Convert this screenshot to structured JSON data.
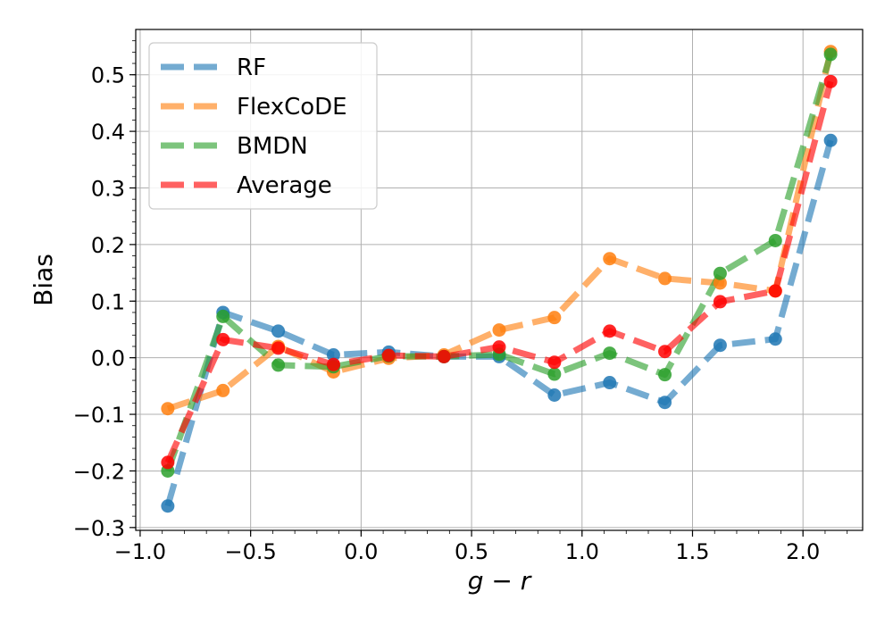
{
  "chart_data": {
    "type": "line",
    "title": "",
    "xlabel": "g − r",
    "ylabel": "Bias",
    "xlim": [
      -1.02,
      2.27
    ],
    "ylim": [
      -0.305,
      0.58
    ],
    "grid": true,
    "legend_position": "top-left",
    "x": [
      -0.875,
      -0.625,
      -0.375,
      -0.125,
      0.125,
      0.375,
      0.625,
      0.875,
      1.125,
      1.375,
      1.625,
      1.875,
      2.125
    ],
    "x_ticks": [
      {
        "value": -1.0,
        "label": "−1.0"
      },
      {
        "value": -0.5,
        "label": "−0.5"
      },
      {
        "value": 0.0,
        "label": "0.0"
      },
      {
        "value": 0.5,
        "label": "0.5"
      },
      {
        "value": 1.0,
        "label": "1.0"
      },
      {
        "value": 1.5,
        "label": "1.5"
      },
      {
        "value": 2.0,
        "label": "2.0"
      }
    ],
    "y_ticks": [
      {
        "value": -0.3,
        "label": "−0.3"
      },
      {
        "value": -0.2,
        "label": "−0.2"
      },
      {
        "value": -0.1,
        "label": "−0.1"
      },
      {
        "value": 0.0,
        "label": "0.0"
      },
      {
        "value": 0.1,
        "label": "0.1"
      },
      {
        "value": 0.2,
        "label": "0.2"
      },
      {
        "value": 0.3,
        "label": "0.3"
      },
      {
        "value": 0.4,
        "label": "0.4"
      },
      {
        "value": 0.5,
        "label": "0.5"
      }
    ],
    "series": [
      {
        "name": "RF",
        "color": "#1f77b4",
        "values": [
          -0.262,
          0.08,
          0.047,
          0.005,
          0.01,
          0.002,
          0.002,
          -0.066,
          -0.044,
          -0.079,
          0.022,
          0.033,
          0.384
        ]
      },
      {
        "name": "FlexCoDE",
        "color": "#ff7f0e",
        "values": [
          -0.09,
          -0.058,
          0.02,
          -0.025,
          -0.001,
          0.005,
          0.049,
          0.071,
          0.175,
          0.14,
          0.132,
          0.118,
          0.541
        ]
      },
      {
        "name": "BMDN",
        "color": "#2ca02c",
        "values": [
          -0.2,
          0.073,
          -0.013,
          -0.016,
          0.003,
          0.002,
          0.006,
          -0.029,
          0.008,
          -0.03,
          0.149,
          0.207,
          0.536
        ]
      },
      {
        "name": "Average",
        "color": "#ff0000",
        "values": [
          -0.185,
          0.032,
          0.017,
          -0.012,
          0.004,
          0.002,
          0.019,
          -0.008,
          0.047,
          0.011,
          0.099,
          0.118,
          0.488
        ]
      }
    ]
  }
}
